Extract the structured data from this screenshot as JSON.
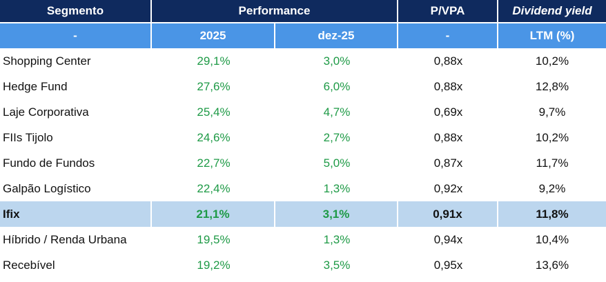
{
  "header": {
    "row1": [
      "Segmento",
      "Performance",
      "P/VPA",
      "Dividend yield"
    ],
    "row2": [
      "-",
      "2025",
      "dez-25",
      "-",
      "LTM (%)"
    ]
  },
  "table": {
    "rows": [
      [
        "Shopping Center",
        "29,1%",
        "3,0%",
        "0,88x",
        "10,2%"
      ],
      [
        "Hedge Fund",
        "27,6%",
        "6,0%",
        "0,88x",
        "12,8%"
      ],
      [
        "Laje Corporativa",
        "25,4%",
        "4,7%",
        "0,69x",
        "9,7%"
      ],
      [
        "FIIs Tijolo",
        "24,6%",
        "2,7%",
        "0,88x",
        "10,2%"
      ],
      [
        "Fundo de Fundos",
        "22,7%",
        "5,0%",
        "0,87x",
        "11,7%"
      ],
      [
        "Galpão Logístico",
        "22,4%",
        "1,3%",
        "0,92x",
        "9,2%"
      ],
      [
        "Ifix",
        "21,1%",
        "3,1%",
        "0,91x",
        "11,8%"
      ],
      [
        "Híbrido / Renda Urbana",
        "19,5%",
        "1,3%",
        "0,94x",
        "10,4%"
      ],
      [
        "Recebível",
        "19,2%",
        "3,5%",
        "0,95x",
        "13,6%"
      ]
    ]
  }
}
